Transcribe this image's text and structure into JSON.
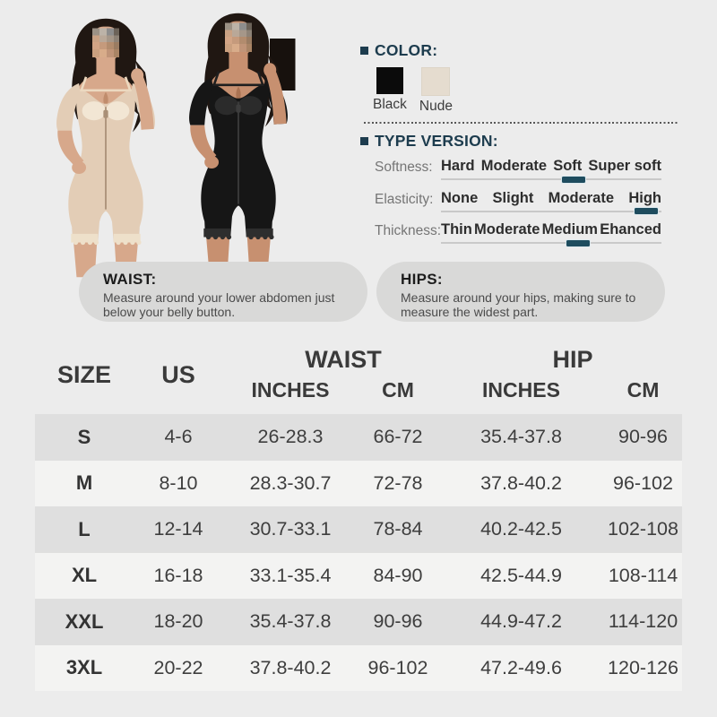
{
  "product_photos": {
    "description": "Two models wearing short-sleeve full bodyshaper with front zipper and lace hem",
    "models": [
      {
        "variant": "Nude"
      },
      {
        "variant": "Black"
      }
    ]
  },
  "color_section": {
    "title": "COLOR:",
    "swatches": [
      {
        "label": "Black",
        "hex": "#0b0b0b"
      },
      {
        "label": "Nude",
        "hex": "#e5dccf"
      }
    ]
  },
  "type_version": {
    "title": "TYPE VERSION:",
    "rows": [
      {
        "label": "Softness:",
        "options": [
          "Hard",
          "Moderate",
          "Soft",
          "Super soft"
        ],
        "selected": "Soft",
        "indicator_left": "60%"
      },
      {
        "label": "Elasticity:",
        "options": [
          "None",
          "Slight",
          "Moderate",
          "High"
        ],
        "selected": "High",
        "indicator_left": "93%"
      },
      {
        "label": "Thickness:",
        "options": [
          "Thin",
          "Moderate",
          "Medium",
          "Ehanced"
        ],
        "selected": "Medium",
        "indicator_left": "62%"
      }
    ]
  },
  "measure_tips": {
    "waist": {
      "title": "WAIST:",
      "text": "Measure around your lower abdomen just below your belly button."
    },
    "hips": {
      "title": "HIPS:",
      "text": "Measure around your hips, making sure to measure the widest part."
    }
  },
  "size_chart": {
    "type": "table",
    "header": {
      "size": "SIZE",
      "us": "US",
      "waist": "WAIST",
      "hip": "HIP",
      "sub": [
        "INCHES",
        "CM",
        "INCHES",
        "CM"
      ]
    },
    "rows": [
      [
        "S",
        "4-6",
        "26-28.3",
        "66-72",
        "35.4-37.8",
        "90-96"
      ],
      [
        "M",
        "8-10",
        "28.3-30.7",
        "72-78",
        "37.8-40.2",
        "96-102"
      ],
      [
        "L",
        "12-14",
        "30.7-33.1",
        "78-84",
        "40.2-42.5",
        "102-108"
      ],
      [
        "XL",
        "16-18",
        "33.1-35.4",
        "84-90",
        "42.5-44.9",
        "108-114"
      ],
      [
        "XXL",
        "18-20",
        "35.4-37.8",
        "90-96",
        "44.9-47.2",
        "114-120"
      ],
      [
        "3XL",
        "20-22",
        "37.8-40.2",
        "96-102",
        "47.2-49.6",
        "120-126"
      ]
    ]
  },
  "theme": {
    "accent": "#1d3c4e",
    "indicator": "#1e4c5e",
    "row_band": "#dfdfdf",
    "background": "#ececec"
  }
}
